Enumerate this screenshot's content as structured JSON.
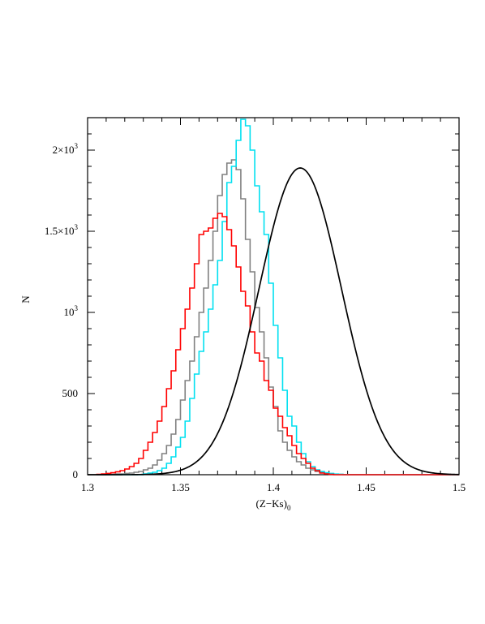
{
  "chart_data": {
    "type": "histogram",
    "xlabel": "(Z−Ks)",
    "xlabel_sub": "0",
    "ylabel": "N",
    "xlim": [
      1.3,
      1.5
    ],
    "ylim": [
      0,
      2200
    ],
    "grid": false,
    "x_ticks": [
      {
        "value": 1.3,
        "label": "1.3"
      },
      {
        "value": 1.35,
        "label": "1.35"
      },
      {
        "value": 1.4,
        "label": "1.4"
      },
      {
        "value": 1.45,
        "label": "1.45"
      },
      {
        "value": 1.5,
        "label": "1.5"
      }
    ],
    "y_ticks": [
      {
        "value": 0,
        "label": "0",
        "sup": ""
      },
      {
        "value": 500,
        "label": "500",
        "sup": ""
      },
      {
        "value": 1000,
        "label": "10",
        "sup": "3"
      },
      {
        "value": 1500,
        "label": "1.5×10",
        "sup": "3"
      },
      {
        "value": 2000,
        "label": "2×10",
        "sup": "3"
      }
    ],
    "bin_edges_start": 1.305,
    "bin_width": 0.0025,
    "series": [
      {
        "color": "#808080",
        "style": "step",
        "values": [
          0,
          0,
          2,
          2,
          5,
          5,
          8,
          10,
          15,
          20,
          30,
          40,
          60,
          90,
          130,
          180,
          250,
          340,
          460,
          580,
          700,
          850,
          1000,
          1150,
          1320,
          1500,
          1720,
          1850,
          1920,
          1940,
          1880,
          1700,
          1450,
          1250,
          1030,
          880,
          720,
          540,
          420,
          270,
          200,
          150,
          110,
          80,
          60,
          40,
          30,
          20,
          15,
          10,
          5,
          3,
          2,
          1,
          0,
          0,
          0,
          0,
          0,
          0,
          0,
          0,
          0,
          0,
          0,
          0,
          0,
          0,
          0,
          0,
          0,
          0,
          0,
          0,
          0,
          0,
          0,
          0
        ]
      },
      {
        "color": "#00e0f0",
        "style": "step",
        "values": [
          0,
          0,
          0,
          0,
          0,
          0,
          0,
          0,
          0,
          0,
          5,
          10,
          15,
          25,
          40,
          70,
          110,
          170,
          230,
          330,
          470,
          620,
          760,
          880,
          1020,
          1170,
          1320,
          1560,
          1800,
          1900,
          2060,
          2190,
          2150,
          2000,
          1780,
          1620,
          1480,
          1180,
          920,
          720,
          520,
          360,
          300,
          200,
          130,
          80,
          50,
          30,
          20,
          12,
          8,
          4,
          2,
          1,
          0,
          0,
          0,
          0,
          0,
          0,
          0,
          0,
          0,
          0,
          0,
          0,
          0,
          0,
          0,
          0,
          0,
          0,
          0,
          0,
          0,
          0,
          0,
          0
        ]
      },
      {
        "color": "#ff0000",
        "style": "step",
        "values": [
          2,
          5,
          8,
          12,
          18,
          25,
          35,
          50,
          70,
          100,
          150,
          200,
          260,
          330,
          420,
          530,
          640,
          770,
          900,
          1020,
          1150,
          1300,
          1480,
          1500,
          1520,
          1580,
          1610,
          1590,
          1510,
          1410,
          1280,
          1130,
          1040,
          880,
          750,
          700,
          580,
          520,
          410,
          360,
          290,
          240,
          180,
          130,
          100,
          70,
          40,
          25,
          10,
          5,
          2,
          0,
          0,
          0,
          0,
          0,
          0,
          0,
          0,
          0,
          0,
          0,
          0,
          0,
          0,
          0,
          0,
          0,
          0,
          0,
          0,
          0,
          0,
          0,
          0,
          0,
          0,
          0
        ]
      },
      {
        "color": "#000000",
        "style": "gaussian-fit",
        "mean": 1.4145,
        "sigma": 0.0222,
        "amplitude": 1890
      }
    ]
  }
}
